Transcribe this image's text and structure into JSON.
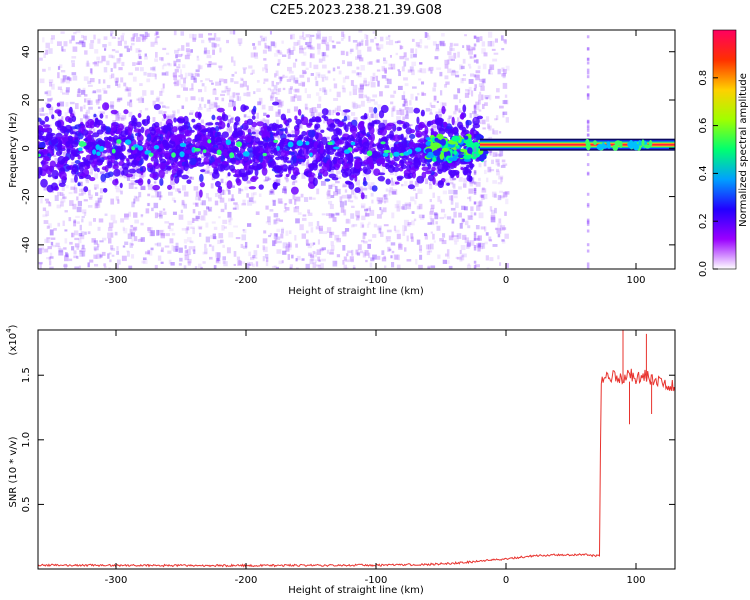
{
  "figure_title": "C2E5.2023.238.21.39.G08",
  "chart_data": [
    {
      "type": "heatmap",
      "xlabel": "Height of straight line (km)",
      "ylabel": "Frequency (Hz)",
      "xlim": [
        -360,
        130
      ],
      "ylim": [
        -50,
        49
      ],
      "xticks": [
        -300,
        -200,
        -100,
        0,
        100
      ],
      "xtick_labels": [
        "-300",
        "-200",
        "-100",
        "0",
        "100"
      ],
      "yticks": [
        -40,
        -20,
        0,
        20,
        40
      ],
      "ytick_labels": [
        "-40",
        "-20",
        "0",
        "20",
        "40"
      ],
      "colorbar": {
        "label": "Normalized spectral amplitude",
        "range": [
          0,
          1
        ],
        "ticks": [
          0.0,
          0.2,
          0.4,
          0.6,
          0.8
        ],
        "tick_labels": [
          "0.0",
          "0.2",
          "0.4",
          "0.6",
          "0.8"
        ],
        "colors": [
          "#ffffff",
          "#9a00ff",
          "#2200ff",
          "#00a0ff",
          "#00ff70",
          "#a0ff00",
          "#ffd000",
          "#ff3000",
          "#ff0060"
        ]
      },
      "features": {
        "strong_band_x": [
          -20,
          130
        ],
        "strong_band_freq_hz": 1.5,
        "noisy_region_x": [
          -360,
          -20
        ],
        "vertical_streaks_x": [
          -24,
          63
        ]
      },
      "grid": false
    },
    {
      "type": "line",
      "xlabel": "Height of straight line (km)",
      "ylabel": "SNR (10 * v/v)",
      "y_multiplier_label": "(x10",
      "y_multiplier_exp": "4",
      "y_multiplier_close": ")",
      "xlim": [
        -360,
        130
      ],
      "ylim": [
        0,
        1.85
      ],
      "xticks": [
        -300,
        -200,
        -100,
        0,
        100
      ],
      "xtick_labels": [
        "-300",
        "-200",
        "-100",
        "0",
        "100"
      ],
      "yticks": [
        0.5,
        1.0,
        1.5
      ],
      "ytick_labels": [
        "0.5",
        "1.0",
        "1.5"
      ],
      "series_color": "#e8332e",
      "x": [
        -360,
        -300,
        -250,
        -200,
        -150,
        -100,
        -60,
        -40,
        -20,
        0,
        20,
        40,
        60,
        72,
        73,
        80,
        85,
        90,
        95,
        100,
        105,
        110,
        115,
        120,
        130
      ],
      "y": [
        0.03,
        0.028,
        0.027,
        0.027,
        0.028,
        0.03,
        0.035,
        0.045,
        0.06,
        0.08,
        0.1,
        0.11,
        0.11,
        0.1,
        1.47,
        1.48,
        1.5,
        1.45,
        1.52,
        1.47,
        1.5,
        1.48,
        1.45,
        1.44,
        1.42
      ],
      "spikes_x": [
        90,
        95,
        108,
        112
      ],
      "spikes_y": [
        1.88,
        1.12,
        1.82,
        1.2
      ],
      "grid": false
    }
  ]
}
